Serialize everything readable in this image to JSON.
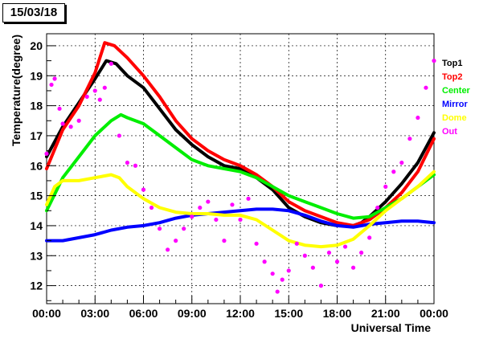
{
  "chart_data": {
    "type": "line",
    "title": "15/03/18",
    "xlabel": "Universal Time",
    "ylabel": "Temperature(degree)",
    "xlim": [
      0,
      24
    ],
    "ylim": [
      11.4,
      20.4
    ],
    "grid": true,
    "legend": "right",
    "xticks": [
      0,
      3,
      6,
      9,
      12,
      15,
      18,
      21,
      24
    ],
    "xtick_labels": [
      "00:00",
      "03:00",
      "06:00",
      "09:00",
      "12:00",
      "15:00",
      "18:00",
      "21:00",
      "00:00"
    ],
    "yticks": [
      12,
      13,
      14,
      15,
      16,
      17,
      18,
      19,
      20
    ],
    "ytick_labels": [
      "12",
      "13",
      "14",
      "15",
      "16",
      "17",
      "18",
      "19",
      "20"
    ],
    "series": [
      {
        "name": "Top1",
        "color": "#000000",
        "x": [
          0,
          1,
          2,
          3,
          3.7,
          4.3,
          5,
          6,
          7,
          8,
          9,
          10,
          11,
          12,
          13,
          14,
          15,
          16,
          17,
          18,
          19,
          19.5,
          20,
          21,
          22,
          23,
          24
        ],
        "y": [
          16.3,
          17.3,
          18.1,
          18.9,
          19.5,
          19.4,
          19.0,
          18.6,
          17.9,
          17.2,
          16.7,
          16.3,
          16.0,
          15.9,
          15.6,
          15.2,
          14.6,
          14.3,
          14.1,
          14.0,
          14.0,
          14.1,
          14.3,
          14.8,
          15.4,
          16.1,
          17.1
        ]
      },
      {
        "name": "Top2",
        "color": "#ff0000",
        "x": [
          0,
          1,
          2,
          3,
          3.6,
          4.2,
          5,
          6,
          7,
          8,
          9,
          10,
          11,
          12,
          13,
          14,
          15,
          16,
          17,
          18,
          19,
          19.5,
          20,
          21,
          22,
          23,
          24
        ],
        "y": [
          15.9,
          17.2,
          18.0,
          19.1,
          20.1,
          20.0,
          19.6,
          19.0,
          18.3,
          17.5,
          16.9,
          16.5,
          16.2,
          16.0,
          15.7,
          15.3,
          14.8,
          14.5,
          14.3,
          14.1,
          14.0,
          14.1,
          14.2,
          14.6,
          15.1,
          15.8,
          16.9
        ]
      },
      {
        "name": "Center",
        "color": "#00ee00",
        "x": [
          0,
          1,
          2,
          3,
          4,
          4.6,
          5,
          6,
          7,
          8,
          9,
          10,
          11,
          12,
          13,
          14,
          15,
          16,
          17,
          18,
          19,
          20,
          21,
          22,
          23,
          24
        ],
        "y": [
          14.5,
          15.6,
          16.3,
          17.0,
          17.5,
          17.7,
          17.6,
          17.4,
          17.0,
          16.6,
          16.2,
          16.0,
          15.9,
          15.8,
          15.6,
          15.3,
          15.0,
          14.8,
          14.6,
          14.4,
          14.25,
          14.3,
          14.6,
          14.9,
          15.3,
          15.7
        ]
      },
      {
        "name": "Mirror",
        "color": "#0000ff",
        "x": [
          0,
          1,
          2,
          3,
          4,
          5,
          6,
          7,
          8,
          9,
          10,
          11,
          12,
          13,
          14,
          15,
          16,
          17,
          18,
          19,
          20,
          21,
          22,
          23,
          24
        ],
        "y": [
          13.5,
          13.5,
          13.6,
          13.7,
          13.85,
          13.95,
          14.0,
          14.1,
          14.25,
          14.35,
          14.4,
          14.45,
          14.5,
          14.55,
          14.55,
          14.5,
          14.35,
          14.15,
          14.0,
          13.95,
          14.05,
          14.1,
          14.15,
          14.15,
          14.1
        ]
      },
      {
        "name": "Dome",
        "color": "#ffff00",
        "x": [
          0,
          0.5,
          1,
          2,
          3,
          4,
          4.5,
          5,
          6,
          7,
          8,
          9,
          10,
          11,
          12,
          13,
          14,
          15,
          16,
          17,
          18,
          19,
          20,
          21,
          22,
          23,
          24
        ],
        "y": [
          14.7,
          15.3,
          15.5,
          15.5,
          15.6,
          15.7,
          15.6,
          15.3,
          14.9,
          14.6,
          14.45,
          14.4,
          14.4,
          14.35,
          14.35,
          14.2,
          13.85,
          13.5,
          13.35,
          13.3,
          13.35,
          13.55,
          14.0,
          14.5,
          14.9,
          15.3,
          15.8
        ]
      },
      {
        "name": "Out",
        "color": "#ff00ff",
        "x": [
          0,
          0.3,
          0.5,
          0.8,
          1,
          1.5,
          2,
          2.5,
          3,
          3.3,
          3.6,
          4,
          4.5,
          5,
          5.5,
          6,
          6.5,
          7,
          7.5,
          8,
          8.5,
          9,
          9.5,
          10,
          10.5,
          11,
          11.5,
          12,
          12.5,
          13,
          13.5,
          14,
          14.3,
          14.6,
          15,
          15.5,
          16,
          16.5,
          17,
          17.5,
          18,
          18.5,
          19,
          19.5,
          20,
          20.5,
          21,
          21.5,
          22,
          22.5,
          23,
          23.5,
          24
        ],
        "y": [
          16.4,
          18.7,
          18.9,
          17.9,
          17.4,
          17.3,
          17.5,
          18.3,
          18.5,
          18.2,
          18.6,
          19.4,
          17.0,
          16.1,
          16.0,
          15.2,
          14.6,
          13.9,
          13.2,
          13.5,
          13.9,
          14.3,
          14.6,
          14.8,
          14.2,
          13.5,
          14.7,
          14.2,
          14.9,
          13.4,
          12.8,
          12.4,
          11.8,
          12.2,
          12.5,
          13.4,
          13.0,
          12.6,
          12.0,
          13.1,
          12.8,
          13.3,
          12.6,
          13.1,
          13.6,
          14.6,
          15.3,
          15.8,
          16.1,
          16.9,
          17.6,
          18.6,
          19.5
        ]
      }
    ]
  }
}
